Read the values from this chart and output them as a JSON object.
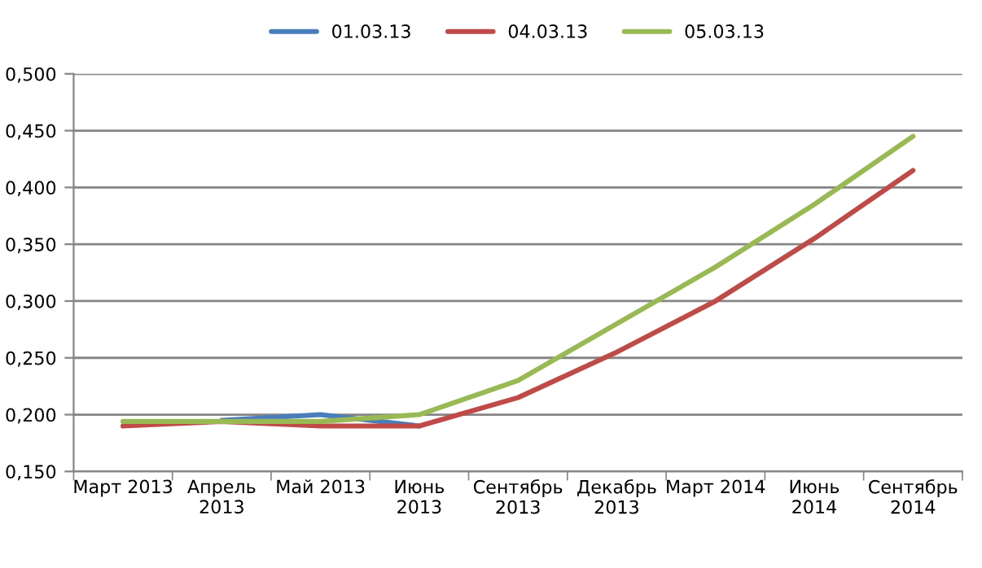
{
  "chart_data": {
    "type": "line",
    "categories": [
      "Март 2013",
      "Апрель\n2013",
      "Май 2013",
      "Июнь\n2013",
      "Сентябрь\n2013",
      "Декабрь\n2013",
      "Март 2014",
      "Июнь\n2014",
      "Сентябрь\n2014"
    ],
    "series": [
      {
        "name": "01.03.13",
        "color": "#4a7ebb",
        "values": [
          null,
          0.195,
          0.2,
          0.19,
          null,
          null,
          null,
          null,
          null
        ]
      },
      {
        "name": "04.03.13",
        "color": "#be4b48",
        "values": [
          0.19,
          0.194,
          0.19,
          0.19,
          0.215,
          0.255,
          0.3,
          0.355,
          0.415
        ]
      },
      {
        "name": "05.03.13",
        "color": "#98b954",
        "values": [
          0.194,
          0.194,
          0.194,
          0.2,
          0.23,
          0.28,
          0.33,
          0.385,
          0.445
        ]
      }
    ],
    "ylim": [
      0.15,
      0.5
    ],
    "yticks": [
      {
        "value": 0.15,
        "label": "0,150"
      },
      {
        "value": 0.2,
        "label": "0,200"
      },
      {
        "value": 0.25,
        "label": "0,250"
      },
      {
        "value": 0.3,
        "label": "0,300"
      },
      {
        "value": 0.35,
        "label": "0,350"
      },
      {
        "value": 0.4,
        "label": "0,400"
      },
      {
        "value": 0.45,
        "label": "0,450"
      },
      {
        "value": 0.5,
        "label": "0,500"
      }
    ],
    "grid": "y",
    "legend": "top",
    "marker": "none",
    "line_style": "solid"
  }
}
